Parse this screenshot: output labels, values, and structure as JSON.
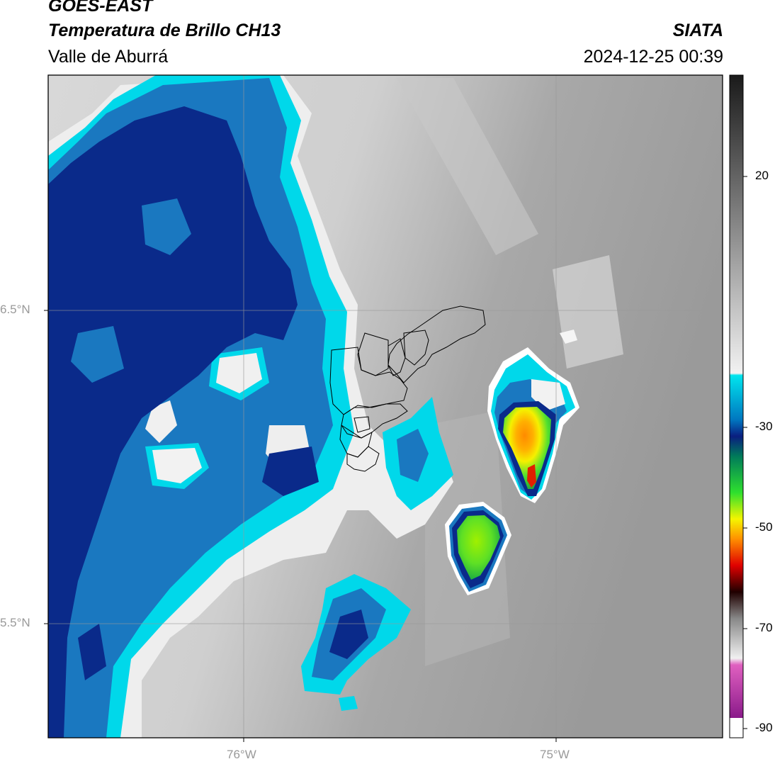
{
  "header": {
    "product": "GOES-EAST",
    "title": "Temperatura de Brillo CH13",
    "region": "Valle de Aburrá",
    "organization": "SIATA",
    "datetime": "2024-12-25 00:39"
  },
  "axes": {
    "lat_labels": [
      "6.5°N",
      "5.5°N"
    ],
    "lon_labels": [
      "76°W",
      "75°W"
    ]
  },
  "colorbar": {
    "tick_labels": [
      "20",
      "-30",
      "-50",
      "-70",
      "-90"
    ],
    "colors": {
      "warm_dark": "#1a1a1a",
      "warm_light": "#f0f0f0",
      "cyan": "#00e5ee",
      "blue": "#0066b3",
      "navy": "#0a2a8a",
      "green": "#2ee02e",
      "yellow": "#f5f500",
      "orange": "#ff8800",
      "red": "#e00000",
      "magenta": "#e060c0",
      "purple": "#8a1a8a"
    }
  }
}
